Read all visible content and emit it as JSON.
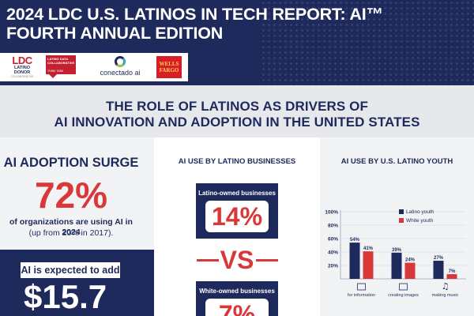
{
  "header": {
    "title": "2024 LDC U.S. LATINOS IN TECH REPORT: AI™ FOURTH ANNUAL EDITION",
    "logos": {
      "ldc_mark": "LDC",
      "ldc_line1": "LATINO",
      "ldc_line2": "DONOR",
      "ldc_line3": "COLLABORATIVE",
      "ldct_text": "LATINO DATA COLLABORATIVE",
      "ldct_sub": "THINK TANK",
      "conectado": "conectado ai",
      "wells_fargo": "WELLS FARGO"
    },
    "colors": {
      "navy": "#1f2a5c",
      "red": "#d9383a"
    }
  },
  "banner": {
    "title_line1": "THE ROLE OF LATINOS AS DRIVERS OF",
    "title_line2": "AI INNOVATION AND ADOPTION IN THE UNITED STATES"
  },
  "adoption": {
    "title": "AI ADOPTION SURGE",
    "percent": "72%",
    "description": "of organizations are using AI in 2024",
    "sub": "(up from 20% in 2017).",
    "expected_label": "AI is expected to add",
    "expected_value": "$15.7"
  },
  "business": {
    "title": "AI USE BY LATINO BUSINESSES",
    "latino_label": "Latino-owned businesses",
    "latino_value": "14%",
    "vs": "VS",
    "white_label": "White-owned businesses",
    "white_value": "7%"
  },
  "youth": {
    "title": "AI USE BY U.S. LATINO YOUTH"
  },
  "chart_data": {
    "type": "bar",
    "categories": [
      "for information",
      "creating images",
      "making music"
    ],
    "series": [
      {
        "name": "Latino youth",
        "values": [
          54,
          39,
          27
        ],
        "color": "#1f2a5c"
      },
      {
        "name": "White youth",
        "values": [
          41,
          24,
          7
        ],
        "color": "#d9383a"
      }
    ],
    "data_labels": [
      [
        "54%",
        "39%",
        "27%"
      ],
      [
        "41%",
        "24%",
        "7%"
      ]
    ],
    "yticks": [
      "100%",
      "80%",
      "60%",
      "40%",
      "20%"
    ],
    "ylim": [
      0,
      100
    ],
    "grid": true,
    "legend": "top-right",
    "category_icons": [
      "info-icon",
      "image-icon",
      "music-note-icon"
    ]
  }
}
